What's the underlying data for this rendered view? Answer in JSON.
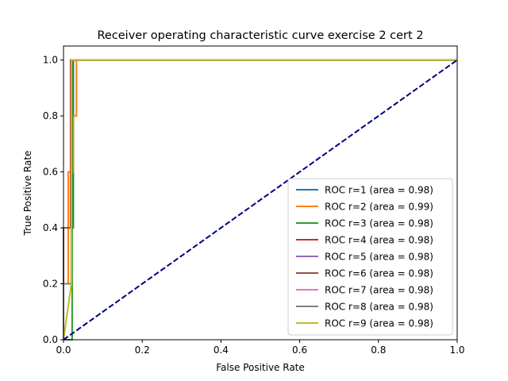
{
  "chart_data": {
    "type": "line",
    "title": "Receiver operating characteristic curve exercise 2 cert 2",
    "xlabel": "False Positive Rate",
    "ylabel": "True Positive Rate",
    "xlim": [
      0.0,
      1.0
    ],
    "ylim": [
      0.0,
      1.05
    ],
    "xticks": [
      "0.0",
      "0.2",
      "0.4",
      "0.6",
      "0.8",
      "1.0"
    ],
    "yticks": [
      "0.0",
      "0.2",
      "0.4",
      "0.6",
      "0.8",
      "1.0"
    ],
    "grid": false,
    "legend_position": "lower-right",
    "series": [
      {
        "name": "ROC r=1 (area = 0.98)",
        "color": "#1f77b4",
        "x": [
          0.0,
          0.0,
          0.02,
          0.02,
          0.025,
          0.025,
          1.0
        ],
        "y": [
          0.0,
          0.2,
          0.2,
          0.4,
          0.4,
          1.0,
          1.0
        ]
      },
      {
        "name": "ROC r=2 (area = 0.99)",
        "color": "#ff7f0e",
        "x": [
          0.0,
          0.0,
          0.012,
          0.012,
          0.025,
          0.025,
          0.033,
          0.033,
          1.0
        ],
        "y": [
          0.0,
          0.2,
          0.2,
          0.6,
          0.6,
          0.8,
          0.8,
          1.0,
          1.0
        ]
      },
      {
        "name": "ROC r=3 (area = 0.98)",
        "color": "#2ca02c",
        "x": [
          0.0,
          0.0,
          0.022,
          0.022,
          1.0
        ],
        "y": [
          0.0,
          0.0,
          0.0,
          1.0,
          1.0
        ]
      },
      {
        "name": "ROC r=4 (area = 0.98)",
        "color": "#d62728",
        "x": [
          0.0,
          0.0,
          0.018,
          0.018,
          1.0
        ],
        "y": [
          0.0,
          0.4,
          0.4,
          1.0,
          1.0
        ]
      },
      {
        "name": "ROC r=5 (area = 0.98)",
        "color": "#9467bd",
        "x": [
          0.0,
          0.0,
          0.02,
          0.02,
          1.0
        ],
        "y": [
          0.0,
          0.2,
          0.2,
          1.0,
          1.0
        ]
      },
      {
        "name": "ROC r=6 (area = 0.98)",
        "color": "#8c564b",
        "x": [
          0.0,
          0.0,
          0.02,
          0.02,
          1.0
        ],
        "y": [
          0.0,
          0.4,
          0.4,
          1.0,
          1.0
        ]
      },
      {
        "name": "ROC r=7 (area = 0.98)",
        "color": "#e377c2",
        "x": [
          0.0,
          0.0,
          0.02,
          0.02,
          1.0
        ],
        "y": [
          0.0,
          0.2,
          0.2,
          1.0,
          1.0
        ]
      },
      {
        "name": "ROC r=8 (area = 0.98)",
        "color": "#7f7f7f",
        "x": [
          0.0,
          0.0,
          0.02,
          0.02,
          1.0
        ],
        "y": [
          0.0,
          0.2,
          0.2,
          1.0,
          1.0
        ]
      },
      {
        "name": "ROC r=9 (area = 0.98)",
        "color": "#bcbd22",
        "x": [
          0.0,
          0.02,
          0.02,
          1.0
        ],
        "y": [
          0.0,
          0.2,
          1.0,
          1.0
        ]
      }
    ],
    "reference_line": {
      "x": [
        0.0,
        1.0
      ],
      "y": [
        0.0,
        1.0
      ],
      "color": "#000080",
      "style": "dashed"
    }
  }
}
